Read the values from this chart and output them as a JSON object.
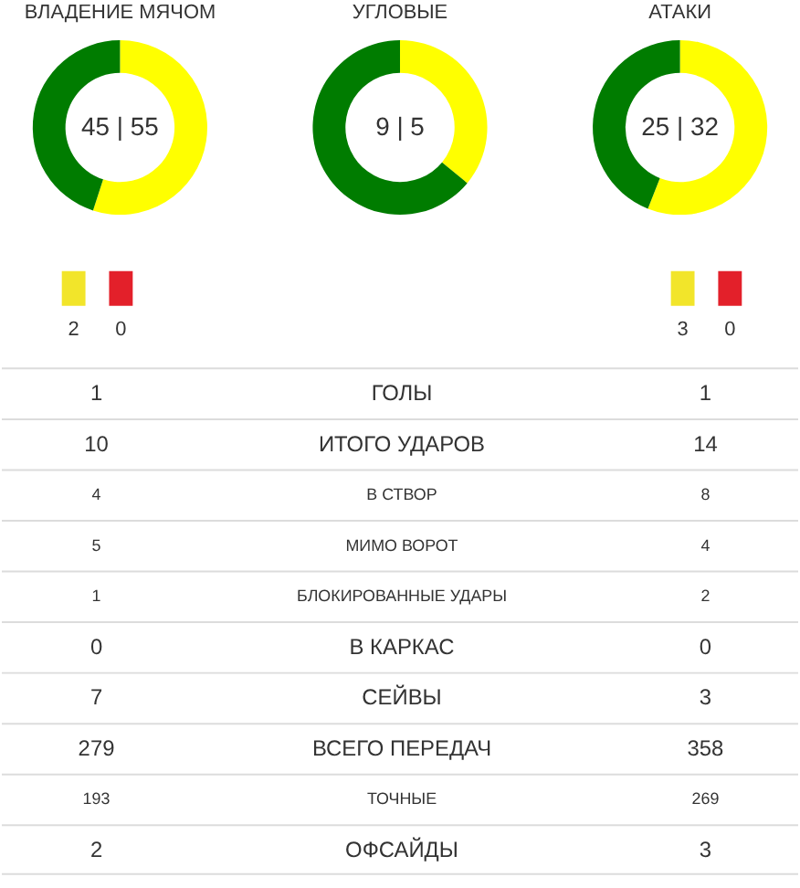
{
  "chart_data": [
    {
      "type": "donut",
      "title": "ВЛАДЕНИЕ МЯЧОМ",
      "categories": [
        null,
        null
      ],
      "values": [
        55,
        45
      ],
      "colors": [
        "#ffff00",
        "#007c00"
      ],
      "annotations": [
        "45 | 55"
      ]
    },
    {
      "type": "donut",
      "title": "УГЛОВЫЕ",
      "categories": [
        null,
        null
      ],
      "values": [
        36,
        64
      ],
      "colors": [
        "#ffff00",
        "#007c00"
      ],
      "annotations": [
        "9 | 5"
      ]
    },
    {
      "type": "donut",
      "title": "АТАКИ",
      "categories": [
        null,
        null
      ],
      "values": [
        56,
        44
      ],
      "colors": [
        "#ffff00",
        "#007c00"
      ],
      "annotations": [
        "25 | 32"
      ]
    },
    {
      "type": "other",
      "categories": [
        null,
        null
      ],
      "values": [
        2,
        0
      ],
      "colors": [
        "#f2e52a",
        "#e3202a"
      ],
      "data_labels": true
    },
    {
      "type": "other",
      "categories": [
        null,
        null
      ],
      "values": [
        3,
        0
      ],
      "colors": [
        "#f2e52a",
        "#e3202a"
      ],
      "data_labels": true
    },
    {
      "type": "other",
      "categories": [
        "ГОЛЫ",
        "ИТОГО УДАРОВ",
        "В СТВОР",
        "МИМО ВОРОТ",
        "БЛОКИРОВАННЫЕ УДАРЫ",
        "В КАРКАС",
        "СЕЙВЫ",
        "ВСЕГО ПЕРЕДАЧ",
        "ТОЧНЫЕ",
        "ОФСАЙДЫ"
      ],
      "series": [
        {
          "color": "#333333",
          "values": [
            1,
            10,
            4,
            5,
            1,
            0,
            7,
            279,
            193,
            2
          ]
        },
        {
          "color": "#333333",
          "values": [
            1,
            14,
            8,
            4,
            2,
            0,
            3,
            358,
            269,
            3
          ]
        }
      ],
      "data_labels": true
    }
  ]
}
